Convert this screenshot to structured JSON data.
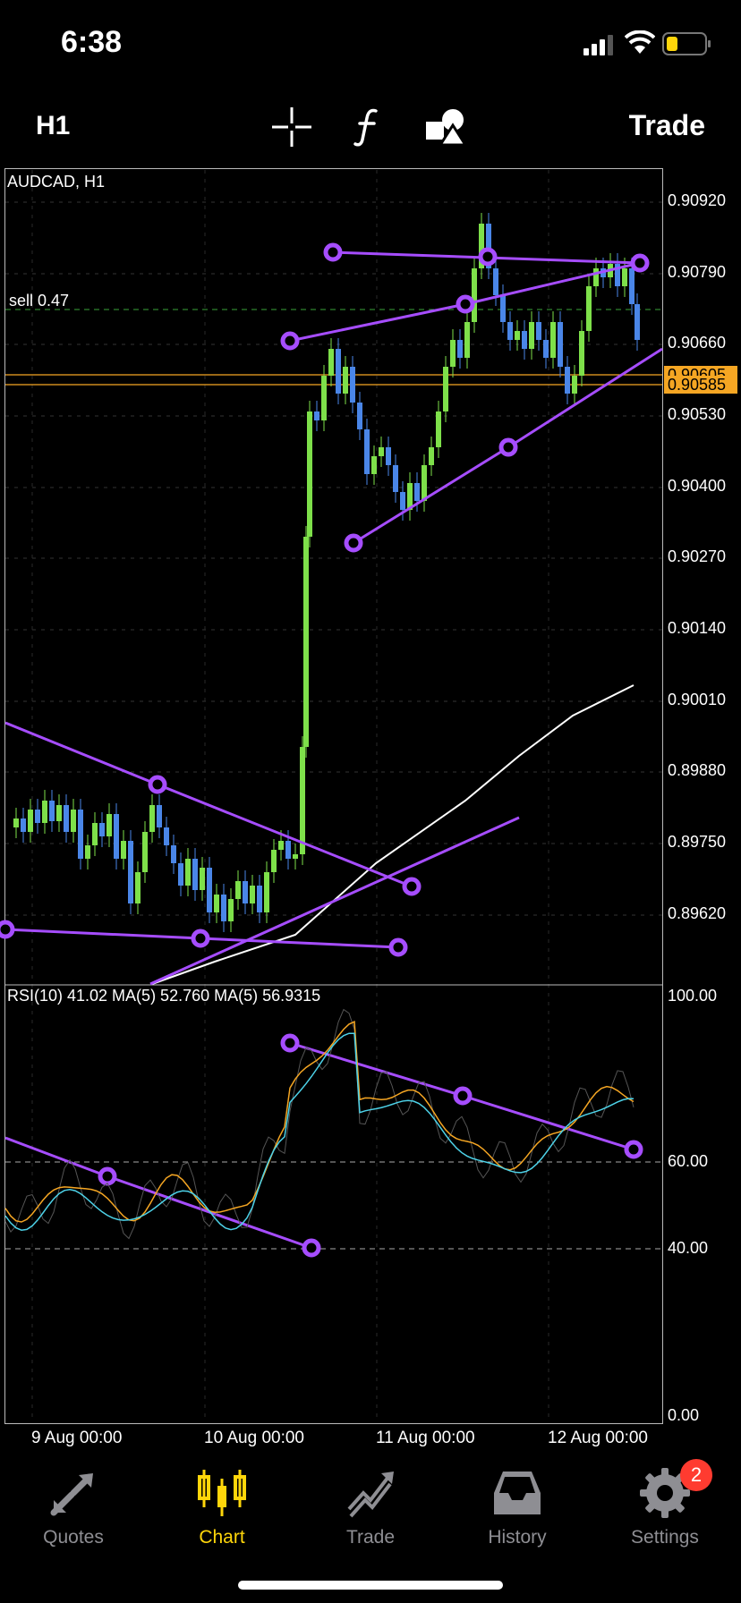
{
  "status_bar": {
    "time": "6:38"
  },
  "toolbar": {
    "timeframe": "H1",
    "trade_label": "Trade",
    "tools": [
      "crosshair-icon",
      "indicator-f-icon",
      "objects-icon"
    ]
  },
  "chart": {
    "symbol_label": "AUDCAD, H1",
    "sell_label": "sell 0.47",
    "price_ticks": [
      "0.90920",
      "0.90790",
      "0.90660",
      "0.90530",
      "0.90400",
      "0.90270",
      "0.90140",
      "0.90010",
      "0.89880",
      "0.89750",
      "0.89620"
    ],
    "bid_tag": "0.90605",
    "ask_tag": "0.90585",
    "rsi_label": "RSI(10) 41.02 MA(5) 52.760 MA(5) 56.9315",
    "rsi_ticks": [
      "100.00",
      "60.00",
      "40.00",
      "0.00"
    ],
    "time_ticks": [
      "9 Aug 00:00",
      "10 Aug 00:00",
      "11 Aug 00:00",
      "12 Aug 00:00"
    ],
    "colors": {
      "bull": "#7ee04a",
      "bear": "#4a86e8",
      "trendline": "#a64dff",
      "ma": "#ffffff",
      "bid": "#f5a623",
      "rsi_ma1": "#f5a623",
      "rsi_ma2": "#4dd2e8"
    }
  },
  "tabs": [
    {
      "label": "Quotes",
      "icon": "quotes-icon"
    },
    {
      "label": "Chart",
      "icon": "chart-icon"
    },
    {
      "label": "Trade",
      "icon": "trade-icon"
    },
    {
      "label": "History",
      "icon": "history-icon"
    },
    {
      "label": "Settings",
      "icon": "settings-icon"
    }
  ],
  "settings_badge": "2"
}
